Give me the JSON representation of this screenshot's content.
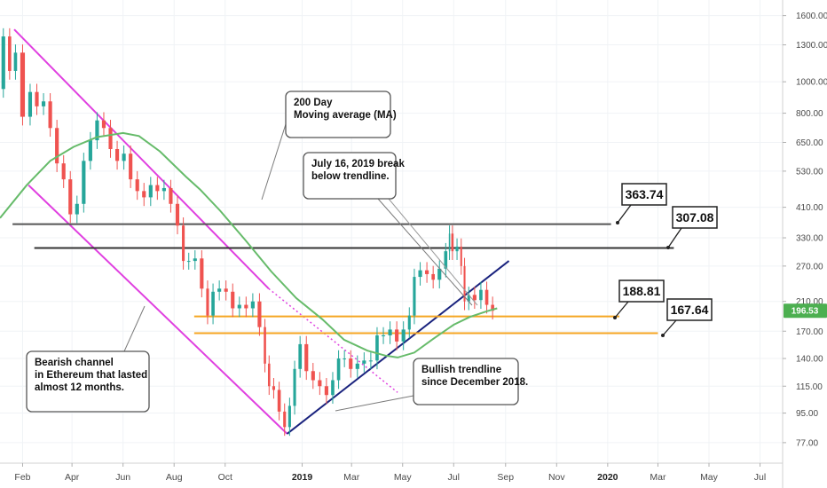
{
  "chart_data": {
    "type": "candlestick",
    "y_scale": "log",
    "ylim": [
      70,
      1700
    ],
    "y_ticks": [
      "1600.00",
      "1300.00",
      "1000.00",
      "800.00",
      "650.00",
      "530.00",
      "410.00",
      "330.00",
      "270.00",
      "210.00",
      "170.00",
      "140.00",
      "115.00",
      "95.00",
      "77.00"
    ],
    "x_ticks": [
      "Feb",
      "Apr",
      "Jun",
      "Aug",
      "Oct",
      "2019",
      "Mar",
      "May",
      "Jul",
      "Sep",
      "Nov",
      "2020",
      "Mar",
      "May",
      "Jul"
    ],
    "x_tick_dates": [
      "2018-02-01",
      "2018-04-01",
      "2018-06-01",
      "2018-08-01",
      "2018-10-01",
      "2019-01-01",
      "2019-03-01",
      "2019-05-01",
      "2019-07-01",
      "2019-09-01",
      "2019-11-01",
      "2020-01-01",
      "2020-03-01",
      "2020-05-01",
      "2020-07-01"
    ],
    "x_range": [
      "2018-01-05",
      "2020-07-28"
    ],
    "current_price": {
      "value": 196.53,
      "label": "196.53",
      "color": "#4caf50"
    },
    "price_series": [
      [
        "2018-01-05",
        950
      ],
      [
        "2018-01-13",
        1380
      ],
      [
        "2018-01-20",
        1080
      ],
      [
        "2018-01-27",
        1230
      ],
      [
        "2018-02-06",
        780
      ],
      [
        "2018-02-14",
        930
      ],
      [
        "2018-02-22",
        840
      ],
      [
        "2018-03-02",
        870
      ],
      [
        "2018-03-10",
        720
      ],
      [
        "2018-03-18",
        560
      ],
      [
        "2018-03-26",
        500
      ],
      [
        "2018-04-03",
        390
      ],
      [
        "2018-04-11",
        420
      ],
      [
        "2018-04-19",
        570
      ],
      [
        "2018-04-27",
        660
      ],
      [
        "2018-05-05",
        760
      ],
      [
        "2018-05-13",
        720
      ],
      [
        "2018-05-21",
        620
      ],
      [
        "2018-05-29",
        570
      ],
      [
        "2018-06-06",
        600
      ],
      [
        "2018-06-14",
        500
      ],
      [
        "2018-06-22",
        460
      ],
      [
        "2018-06-30",
        440
      ],
      [
        "2018-07-08",
        480
      ],
      [
        "2018-07-16",
        460
      ],
      [
        "2018-07-24",
        470
      ],
      [
        "2018-08-01",
        420
      ],
      [
        "2018-08-09",
        360
      ],
      [
        "2018-08-15",
        280
      ],
      [
        "2018-08-22",
        280
      ],
      [
        "2018-08-30",
        285
      ],
      [
        "2018-09-07",
        230
      ],
      [
        "2018-09-13",
        190
      ],
      [
        "2018-09-20",
        225
      ],
      [
        "2018-09-28",
        230
      ],
      [
        "2018-10-06",
        225
      ],
      [
        "2018-10-14",
        200
      ],
      [
        "2018-10-22",
        205
      ],
      [
        "2018-10-30",
        200
      ],
      [
        "2018-11-07",
        210
      ],
      [
        "2018-11-15",
        175
      ],
      [
        "2018-11-20",
        135
      ],
      [
        "2018-11-25",
        115
      ],
      [
        "2018-12-01",
        112
      ],
      [
        "2018-12-08",
        96
      ],
      [
        "2018-12-14",
        86
      ],
      [
        "2018-12-20",
        100
      ],
      [
        "2018-12-26",
        130
      ],
      [
        "2019-01-02",
        155
      ],
      [
        "2019-01-10",
        128
      ],
      [
        "2019-01-18",
        120
      ],
      [
        "2019-01-26",
        115
      ],
      [
        "2019-02-03",
        108
      ],
      [
        "2019-02-10",
        120
      ],
      [
        "2019-02-17",
        140
      ],
      [
        "2019-02-24",
        140
      ],
      [
        "2019-03-04",
        130
      ],
      [
        "2019-03-12",
        135
      ],
      [
        "2019-03-20",
        138
      ],
      [
        "2019-03-28",
        138
      ],
      [
        "2019-04-04",
        165
      ],
      [
        "2019-04-12",
        165
      ],
      [
        "2019-04-20",
        172
      ],
      [
        "2019-04-28",
        158
      ],
      [
        "2019-05-06",
        172
      ],
      [
        "2019-05-12",
        190
      ],
      [
        "2019-05-18",
        250
      ],
      [
        "2019-05-26",
        262
      ],
      [
        "2019-06-03",
        255
      ],
      [
        "2019-06-10",
        245
      ],
      [
        "2019-06-18",
        265
      ],
      [
        "2019-06-25",
        300
      ],
      [
        "2019-06-27",
        340
      ],
      [
        "2019-07-02",
        300
      ],
      [
        "2019-07-08",
        310
      ],
      [
        "2019-07-12",
        270
      ],
      [
        "2019-07-16",
        210
      ],
      [
        "2019-07-22",
        220
      ],
      [
        "2019-07-30",
        212
      ],
      [
        "2019-08-06",
        228
      ],
      [
        "2019-08-13",
        205
      ],
      [
        "2019-08-20",
        196.53
      ]
    ],
    "ma200_series": [
      [
        "2018-01-05",
        380
      ],
      [
        "2018-02-06",
        480
      ],
      [
        "2018-03-06",
        570
      ],
      [
        "2018-04-03",
        630
      ],
      [
        "2018-05-01",
        675
      ],
      [
        "2018-06-01",
        695
      ],
      [
        "2018-06-20",
        680
      ],
      [
        "2018-07-15",
        610
      ],
      [
        "2018-08-15",
        510
      ],
      [
        "2018-09-01",
        465
      ],
      [
        "2018-09-25",
        400
      ],
      [
        "2018-10-25",
        325
      ],
      [
        "2018-11-25",
        260
      ],
      [
        "2018-12-25",
        215
      ],
      [
        "2019-01-25",
        185
      ],
      [
        "2019-02-20",
        160
      ],
      [
        "2019-03-20",
        148
      ],
      [
        "2019-04-10",
        143
      ],
      [
        "2019-04-25",
        141
      ],
      [
        "2019-05-15",
        146
      ],
      [
        "2019-06-05",
        160
      ],
      [
        "2019-07-01",
        178
      ],
      [
        "2019-07-20",
        188
      ],
      [
        "2019-08-10",
        196
      ],
      [
        "2019-08-22",
        200
      ]
    ],
    "horizontal_levels": [
      {
        "value": 363.74,
        "label": "363.74",
        "color": "#555555",
        "from": "2018-01-20",
        "to": "2020-01-05"
      },
      {
        "value": 307.08,
        "label": "307.08",
        "color": "#333333",
        "from": "2018-02-15",
        "to": "2020-03-20"
      },
      {
        "value": 188.81,
        "label": "188.81",
        "color": "#f5a623",
        "from": "2018-08-25",
        "to": "2020-01-15"
      },
      {
        "value": 167.64,
        "label": "167.64",
        "color": "#f5a623",
        "from": "2018-08-25",
        "to": "2020-03-01"
      }
    ],
    "trendlines": [
      {
        "name": "bearish-channel-upper",
        "color": "#e040e0",
        "from": [
          "2018-01-22",
          1450
        ],
        "to": [
          "2018-11-22",
          230
        ],
        "dotted_to": [
          "2019-04-25",
          110
        ]
      },
      {
        "name": "bearish-channel-lower",
        "color": "#e040e0",
        "from": [
          "2018-02-08",
          480
        ],
        "to": [
          "2018-12-14",
          82
        ]
      },
      {
        "name": "bullish-trendline",
        "color": "#1a237e",
        "from": [
          "2018-12-14",
          82
        ],
        "to": [
          "2019-09-05",
          280
        ]
      }
    ],
    "annotations": [
      {
        "name": "ma-callout",
        "lines": [
          "200 Day",
          "Moving average (MA)"
        ]
      },
      {
        "name": "break-callout",
        "lines": [
          "July 16, 2019 break",
          "below trendline."
        ]
      },
      {
        "name": "channel-callout",
        "lines": [
          "Bearish channel",
          "in Ethereum that lasted",
          "almost 12 months."
        ]
      },
      {
        "name": "trendline-callout",
        "lines": [
          "Bullish trendline",
          "since December 2018."
        ]
      }
    ]
  }
}
